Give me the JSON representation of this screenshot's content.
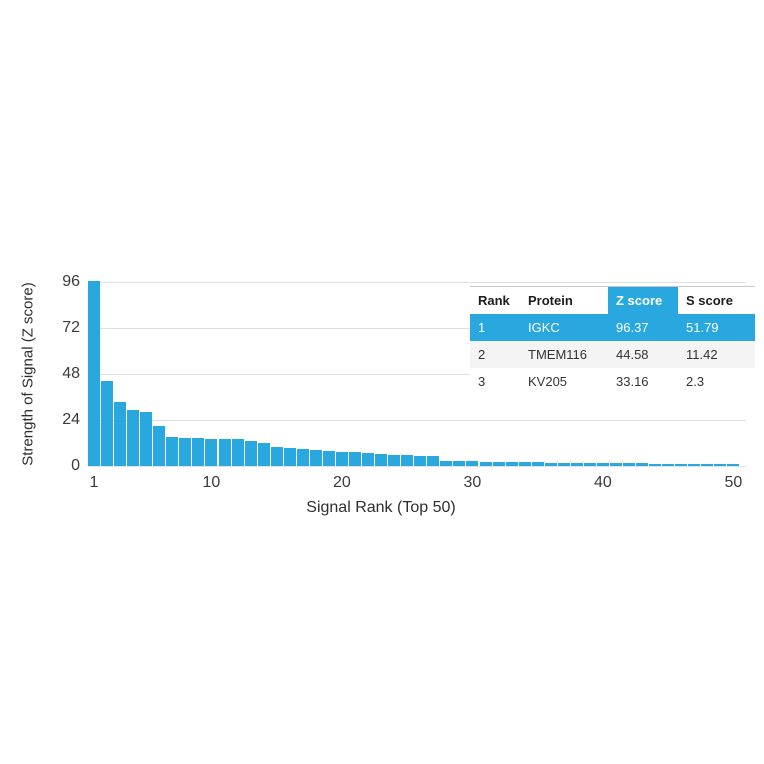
{
  "chart_data": {
    "type": "bar",
    "title": "",
    "xlabel": "Signal Rank (Top 50)",
    "ylabel": "Strength of Signal (Z score)",
    "x": [
      1,
      2,
      3,
      4,
      5,
      6,
      7,
      8,
      9,
      10,
      11,
      12,
      13,
      14,
      15,
      16,
      17,
      18,
      19,
      20,
      21,
      22,
      23,
      24,
      25,
      26,
      27,
      28,
      29,
      30,
      31,
      32,
      33,
      34,
      35,
      36,
      37,
      38,
      39,
      40,
      41,
      42,
      43,
      44,
      45,
      46,
      47,
      48,
      49,
      50
    ],
    "values": [
      96.37,
      44.58,
      33.16,
      29.1,
      28.2,
      21.1,
      14.9,
      14.6,
      14.4,
      14.3,
      14.3,
      14.1,
      12.9,
      12.1,
      10.1,
      9.6,
      9.0,
      8.3,
      7.8,
      7.5,
      7.2,
      6.9,
      6.1,
      5.7,
      5.5,
      5.2,
      5.0,
      2.7,
      2.5,
      2.4,
      2.3,
      2.2,
      2.1,
      2.0,
      1.9,
      1.8,
      1.7,
      1.6,
      1.6,
      1.5,
      1.5,
      1.4,
      1.4,
      1.3,
      1.3,
      1.2,
      1.2,
      1.1,
      1.1,
      1.0
    ],
    "y_ticks": [
      0,
      24,
      48,
      72,
      96
    ],
    "x_ticks": [
      1,
      10,
      20,
      30,
      40,
      50
    ],
    "ylim": [
      0,
      96
    ],
    "grid": true,
    "legend": false,
    "bar_color": "#29a8e0",
    "gridline_color": "#e0e0e0"
  },
  "table": {
    "headers": [
      "Rank",
      "Protein",
      "Z score",
      "S score"
    ],
    "highlighted_header": "Z score",
    "highlighted_row_index": 0,
    "highlight_color": "#29a8e0",
    "rows": [
      [
        "1",
        "IGKC",
        "96.37",
        "51.79"
      ],
      [
        "2",
        "TMEM116",
        "44.58",
        "11.42"
      ],
      [
        "3",
        "KV205",
        "33.16",
        "2.3"
      ]
    ]
  }
}
